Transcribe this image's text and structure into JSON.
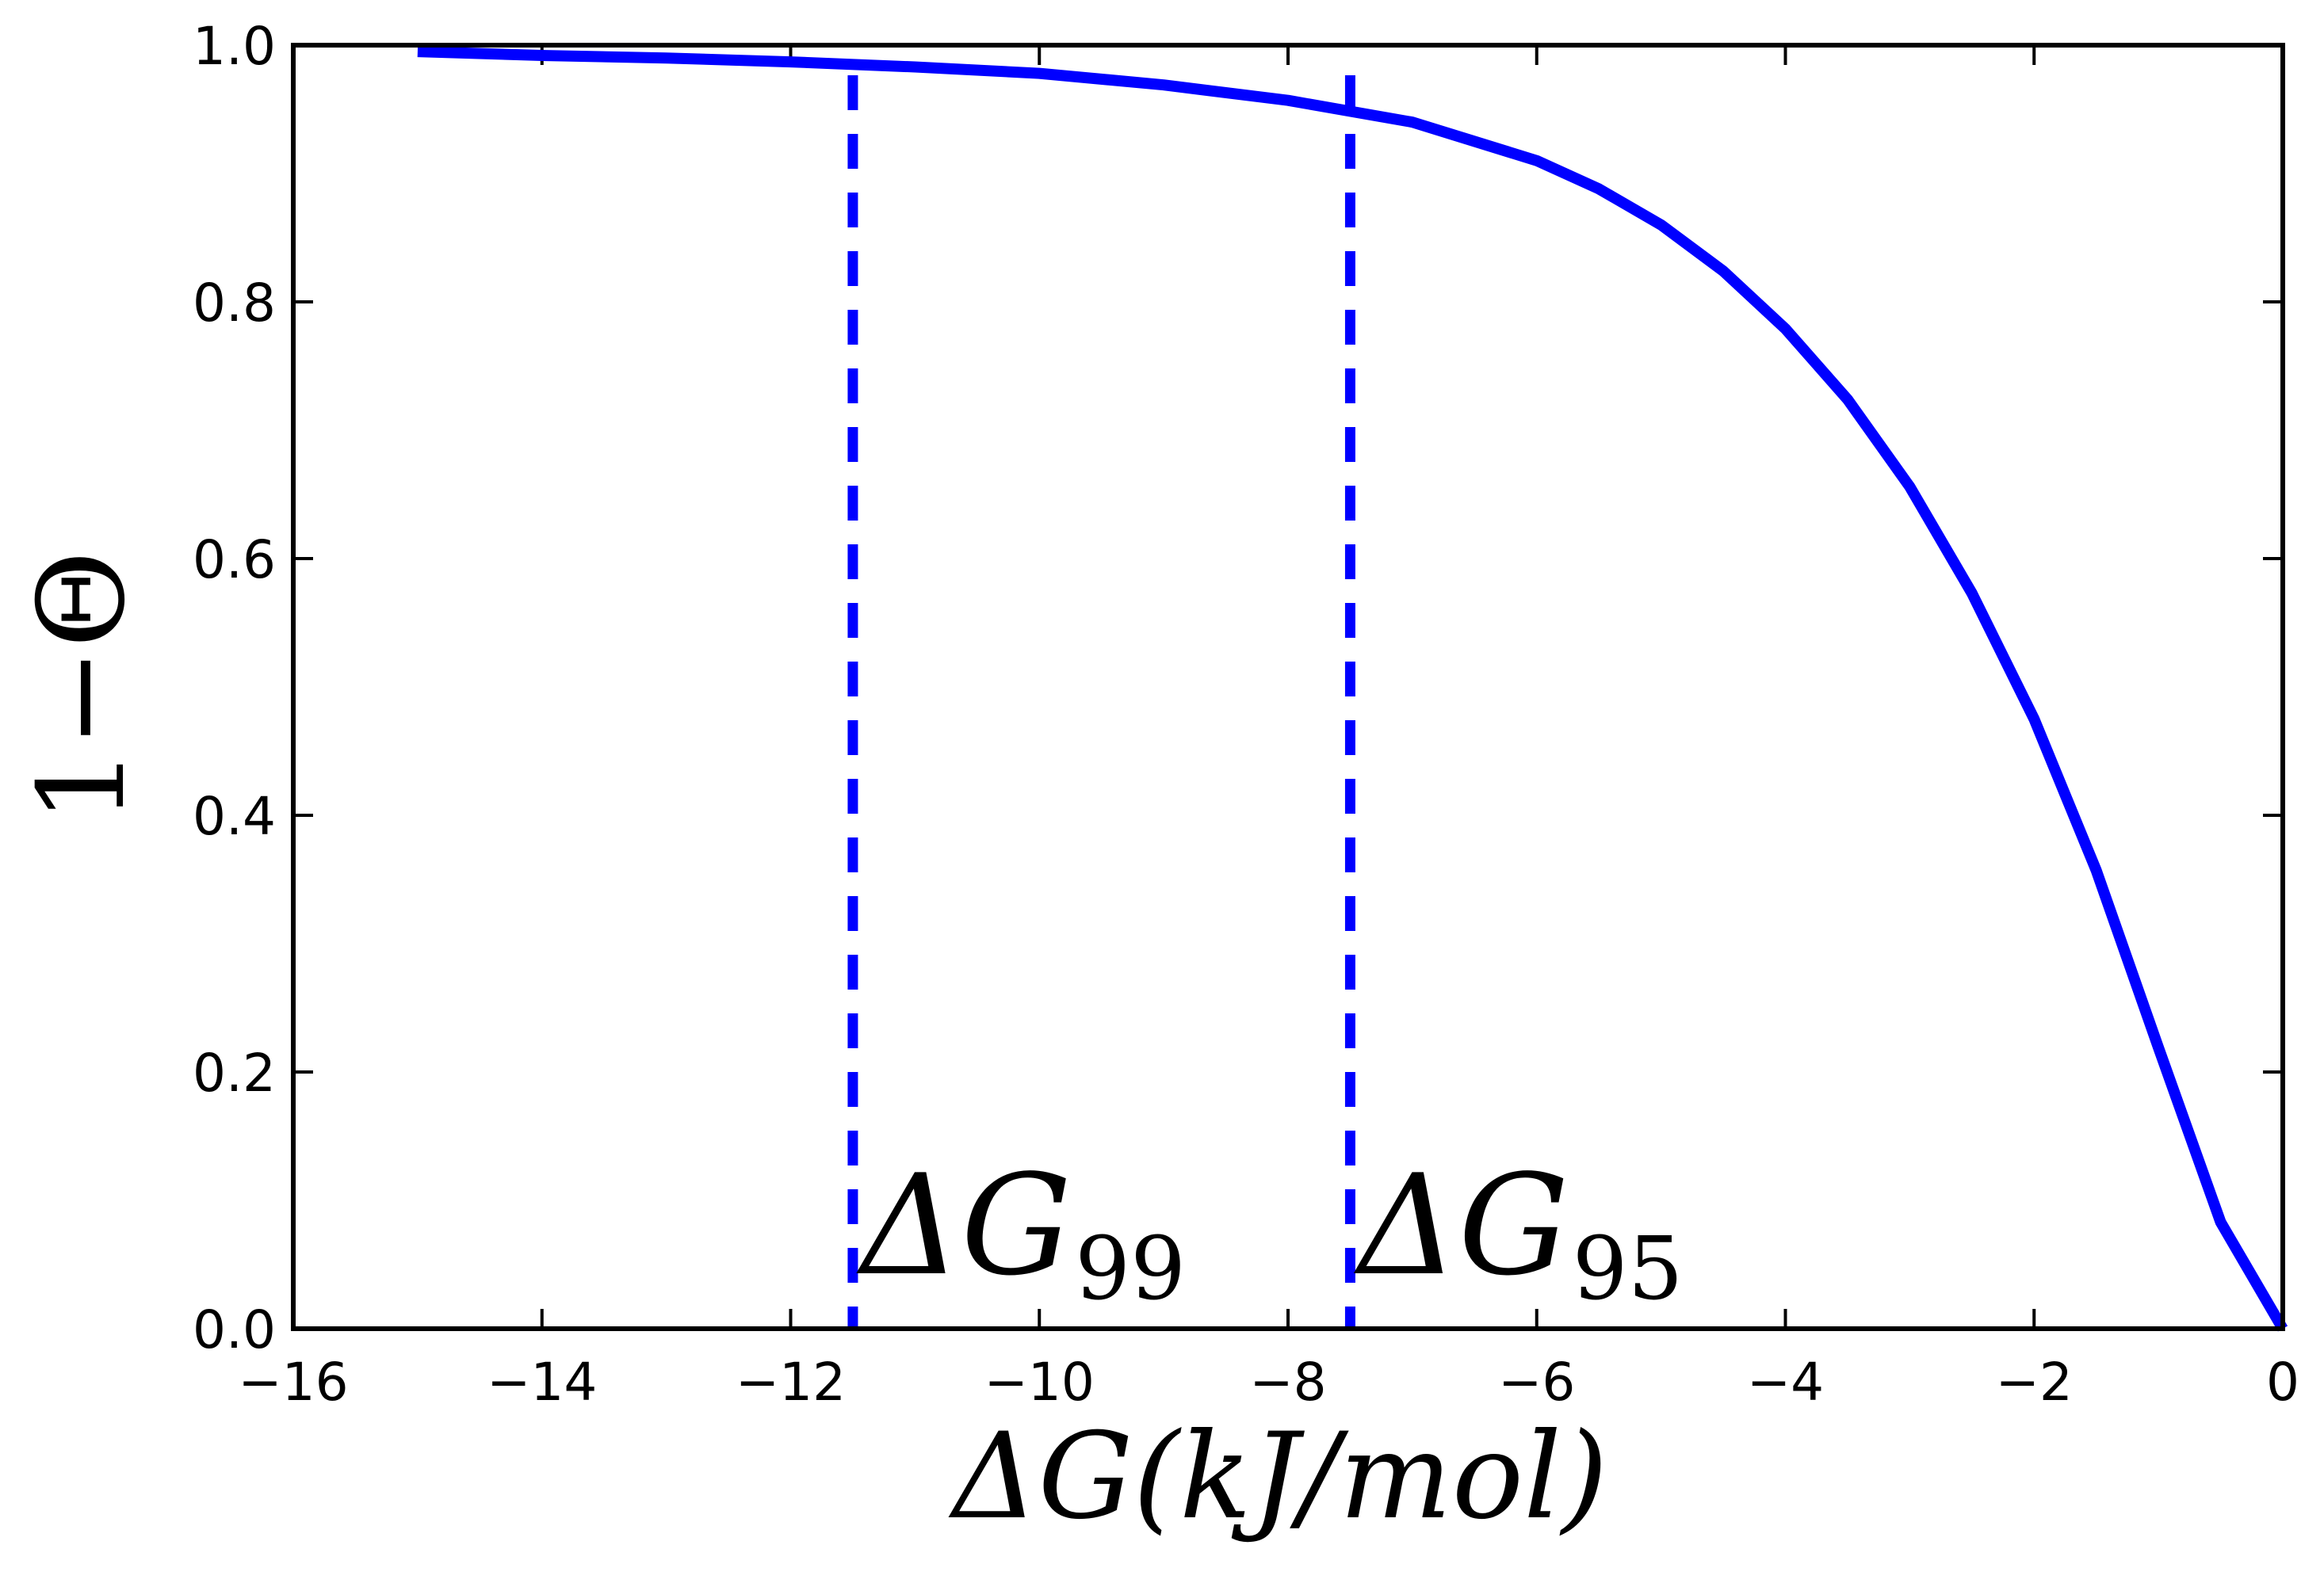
{
  "chart_data": {
    "type": "line",
    "xlabel": "ΔG(kJ/mol)",
    "ylabel": "1−Θ",
    "xlim": [
      -16,
      0
    ],
    "ylim": [
      0,
      1
    ],
    "x_ticks": [
      -16,
      -14,
      -12,
      -10,
      -8,
      -6,
      -4,
      -2,
      0
    ],
    "x_tick_labels": [
      "−16",
      "−14",
      "−12",
      "−10",
      "−8",
      "−6",
      "−4",
      "−2",
      "0"
    ],
    "y_ticks": [
      0,
      0.2,
      0.4,
      0.6,
      0.8,
      1.0
    ],
    "y_tick_labels": [
      "0.0",
      "0.2",
      "0.4",
      "0.6",
      "0.8",
      "1.0"
    ],
    "grid": false,
    "series": [
      {
        "style": "solid",
        "color": "#0000ff",
        "x": [
          -15,
          -14,
          -13,
          -12,
          -11,
          -10,
          -9,
          -8,
          -7,
          -6,
          -5.5,
          -5,
          -4.5,
          -4,
          -3.5,
          -3,
          -2.5,
          -2,
          -1.5,
          -1,
          -0.5,
          0
        ],
        "y": [
          0.995,
          0.992,
          0.99,
          0.987,
          0.983,
          0.978,
          0.969,
          0.957,
          0.94,
          0.91,
          0.888,
          0.86,
          0.824,
          0.779,
          0.724,
          0.656,
          0.573,
          0.475,
          0.357,
          0.219,
          0.083,
          0.0
        ]
      }
    ],
    "vlines": [
      {
        "x": -11.5,
        "label": "ΔG",
        "subscript": "99",
        "style": "dashed",
        "color": "#0000ff"
      },
      {
        "x": -7.5,
        "label": "ΔG",
        "subscript": "95",
        "style": "dashed",
        "color": "#0000ff"
      }
    ]
  }
}
